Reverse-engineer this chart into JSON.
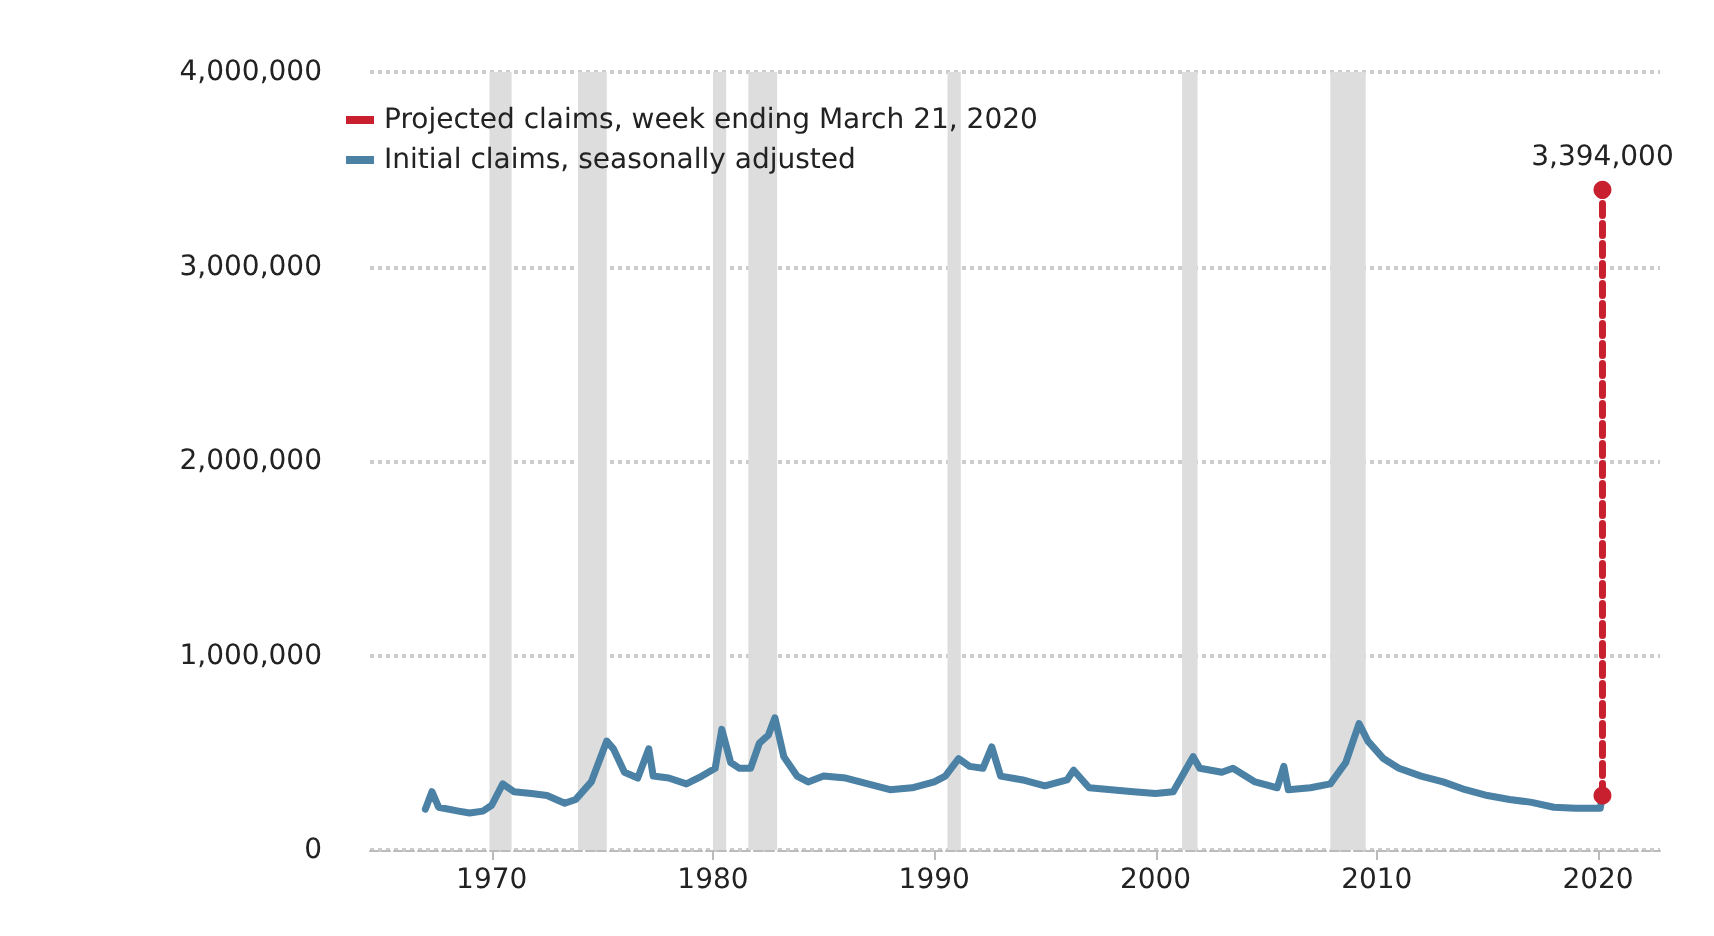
{
  "chart_data": {
    "type": "line",
    "legend": "top left",
    "grid": "y",
    "marker": "none",
    "xlim": [
      1964.5,
      2022.8
    ],
    "xticks": [
      1970,
      1980,
      1990,
      2000,
      2010,
      2020
    ],
    "ylim": [
      0,
      4000000
    ],
    "yticks": [
      {
        "value": 0,
        "label": "0"
      },
      {
        "value": 1000000,
        "label": "1,000,000"
      },
      {
        "value": 2000000,
        "label": "2,000,000"
      },
      {
        "value": 3000000,
        "label": "3,000,000"
      },
      {
        "value": 4000000,
        "label": "4,000,000"
      }
    ],
    "bands": [
      {
        "axis": "x",
        "from": 1969.9,
        "to": 1970.9,
        "color": "#dddddd"
      },
      {
        "axis": "x",
        "from": 1973.9,
        "to": 1975.2,
        "color": "#dddddd"
      },
      {
        "axis": "x",
        "from": 1980.0,
        "to": 1980.6,
        "color": "#dddddd"
      },
      {
        "axis": "x",
        "from": 1981.6,
        "to": 1982.9,
        "color": "#dddddd"
      },
      {
        "axis": "x",
        "from": 1990.6,
        "to": 1991.2,
        "color": "#dddddd"
      },
      {
        "axis": "x",
        "from": 2001.2,
        "to": 2001.9,
        "color": "#dddddd"
      },
      {
        "axis": "x",
        "from": 2007.9,
        "to": 2009.5,
        "color": "#dddddd"
      }
    ],
    "series": [
      {
        "name": "Projected claims, week ending March 21, 2020",
        "color": "#c8202f",
        "line_style": "dashed",
        "marker": "circle",
        "x": [
          2020.2,
          2020.2
        ],
        "values": [
          280000,
          3394000
        ],
        "value_labels": [
          null,
          "3,394,000"
        ]
      },
      {
        "name": "Initial claims, seasonally adjusted",
        "color": "#4a81a5",
        "line_style": "solid",
        "x": [
          1967.0,
          1967.3,
          1967.6,
          1968.5,
          1969.0,
          1969.6,
          1970.0,
          1970.5,
          1971.0,
          1971.8,
          1972.5,
          1973.3,
          1973.8,
          1974.5,
          1975.2,
          1975.5,
          1976.0,
          1976.6,
          1977.1,
          1977.3,
          1978.0,
          1978.8,
          1979.5,
          1980.1,
          1980.4,
          1980.8,
          1981.2,
          1981.7,
          1982.1,
          1982.5,
          1982.8,
          1983.2,
          1983.8,
          1984.3,
          1985.0,
          1986.0,
          1987.0,
          1988.0,
          1989.0,
          1990.0,
          1990.5,
          1991.1,
          1991.6,
          1992.2,
          1992.6,
          1993.0,
          1994.0,
          1995.0,
          1996.0,
          1996.3,
          1997.0,
          1998.0,
          1999.0,
          2000.0,
          2000.8,
          2001.3,
          2001.7,
          2002.0,
          2003.0,
          2003.5,
          2004.5,
          2005.5,
          2005.8,
          2006.0,
          2007.0,
          2007.9,
          2008.6,
          2009.2,
          2009.6,
          2010.3,
          2011.0,
          2012.0,
          2013.0,
          2014.0,
          2015.0,
          2016.0,
          2017.0,
          2018.0,
          2019.0,
          2020.1,
          2020.2
        ],
        "values": [
          210000,
          300000,
          220000,
          200000,
          190000,
          200000,
          230000,
          340000,
          300000,
          290000,
          280000,
          240000,
          260000,
          350000,
          560000,
          520000,
          400000,
          370000,
          520000,
          380000,
          370000,
          340000,
          380000,
          420000,
          620000,
          450000,
          420000,
          420000,
          550000,
          590000,
          680000,
          480000,
          380000,
          350000,
          380000,
          370000,
          340000,
          310000,
          320000,
          350000,
          380000,
          470000,
          430000,
          420000,
          530000,
          380000,
          360000,
          330000,
          360000,
          410000,
          320000,
          310000,
          300000,
          290000,
          300000,
          400000,
          480000,
          420000,
          400000,
          420000,
          350000,
          320000,
          430000,
          310000,
          320000,
          340000,
          450000,
          650000,
          560000,
          470000,
          420000,
          380000,
          350000,
          310000,
          280000,
          260000,
          245000,
          220000,
          215000,
          215000,
          280000
        ]
      }
    ]
  }
}
